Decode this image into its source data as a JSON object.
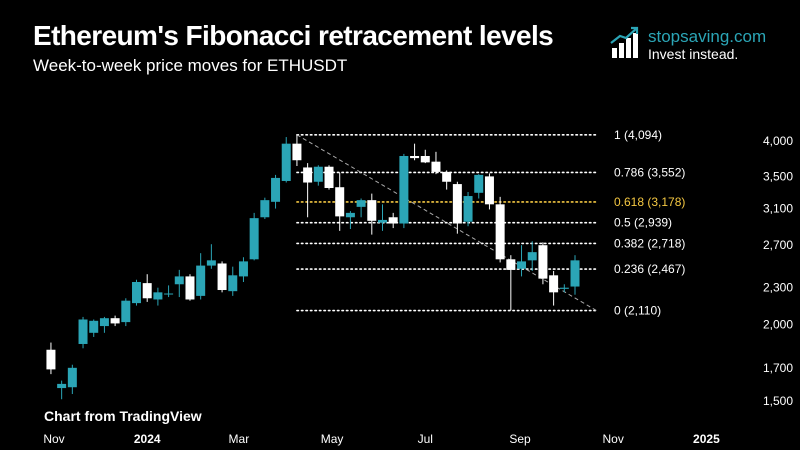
{
  "header": {
    "title": "Ethereum's Fibonacci retracement levels",
    "subtitle": "Week-to-week price moves for ETHUSDT"
  },
  "brand": {
    "name": "stopsaving.com",
    "tagline": "Invest instead.",
    "icon": "bar-chart-growth-icon"
  },
  "credit": "Chart from TradingView",
  "colors": {
    "background": "#000000",
    "up": "#2ba5b6",
    "down": "#ffffff",
    "fib_line": "#ffffff",
    "fib_highlight": "#f5c842",
    "trendline": "#aaaaaa"
  },
  "chart_data": {
    "type": "candlestick",
    "title": "Ethereum's Fibonacci retracement levels",
    "xlabel": "",
    "ylabel": "",
    "y_scale": "log",
    "ylim": [
      1420,
      4500
    ],
    "grid": false,
    "x_ticks": [
      "Nov",
      "2024",
      "Mar",
      "May",
      "Jul",
      "Sep",
      "Nov",
      "2025"
    ],
    "x_tick_dates": [
      "2023-11-01",
      "2024-01-01",
      "2024-03-01",
      "2024-05-01",
      "2024-07-01",
      "2024-09-01",
      "2024-11-01",
      "2025-01-01"
    ],
    "y_ticks": [
      1500,
      1700,
      2000,
      2300,
      2700,
      3100,
      3500,
      4000
    ],
    "y_tick_labels": [
      "1,500",
      "1,700",
      "2,000",
      "2,300",
      "2,700",
      "3,100",
      "3,500",
      "4,000"
    ],
    "candles": [
      {
        "date": "2023-10-30",
        "o": 1820,
        "h": 1870,
        "l": 1660,
        "c": 1690
      },
      {
        "date": "2023-11-06",
        "o": 1575,
        "h": 1620,
        "l": 1510,
        "c": 1600
      },
      {
        "date": "2023-11-13",
        "o": 1580,
        "h": 1720,
        "l": 1540,
        "c": 1700
      },
      {
        "date": "2023-11-20",
        "o": 1860,
        "h": 2060,
        "l": 1830,
        "c": 2040
      },
      {
        "date": "2023-11-27",
        "o": 1940,
        "h": 2040,
        "l": 1910,
        "c": 2030
      },
      {
        "date": "2023-12-04",
        "o": 1990,
        "h": 2060,
        "l": 1940,
        "c": 2050
      },
      {
        "date": "2023-12-11",
        "o": 2050,
        "h": 2070,
        "l": 1990,
        "c": 2010
      },
      {
        "date": "2023-12-18",
        "o": 2020,
        "h": 2210,
        "l": 1990,
        "c": 2190
      },
      {
        "date": "2023-12-25",
        "o": 2170,
        "h": 2370,
        "l": 2150,
        "c": 2350
      },
      {
        "date": "2024-01-01",
        "o": 2340,
        "h": 2420,
        "l": 2180,
        "c": 2210
      },
      {
        "date": "2024-01-08",
        "o": 2200,
        "h": 2300,
        "l": 2150,
        "c": 2260
      },
      {
        "date": "2024-01-15",
        "o": 2250,
        "h": 2320,
        "l": 2220,
        "c": 2250
      },
      {
        "date": "2024-01-22",
        "o": 2330,
        "h": 2460,
        "l": 2220,
        "c": 2400
      },
      {
        "date": "2024-01-29",
        "o": 2400,
        "h": 2420,
        "l": 2190,
        "c": 2200
      },
      {
        "date": "2024-02-05",
        "o": 2230,
        "h": 2620,
        "l": 2200,
        "c": 2500
      },
      {
        "date": "2024-02-12",
        "o": 2500,
        "h": 2710,
        "l": 2470,
        "c": 2550
      },
      {
        "date": "2024-02-19",
        "o": 2520,
        "h": 2540,
        "l": 2260,
        "c": 2280
      },
      {
        "date": "2024-02-26",
        "o": 2270,
        "h": 2490,
        "l": 2230,
        "c": 2410
      },
      {
        "date": "2024-03-04",
        "o": 2400,
        "h": 2580,
        "l": 2350,
        "c": 2540
      },
      {
        "date": "2024-03-11",
        "o": 2560,
        "h": 3050,
        "l": 2550,
        "c": 2990
      },
      {
        "date": "2024-03-18",
        "o": 3000,
        "h": 3230,
        "l": 2980,
        "c": 3200
      },
      {
        "date": "2024-03-25",
        "o": 3180,
        "h": 3520,
        "l": 3100,
        "c": 3480
      },
      {
        "date": "2024-04-01",
        "o": 3440,
        "h": 4060,
        "l": 3420,
        "c": 3960
      },
      {
        "date": "2024-04-08",
        "o": 3960,
        "h": 4094,
        "l": 3640,
        "c": 3720
      },
      {
        "date": "2024-04-15",
        "o": 3620,
        "h": 3680,
        "l": 3000,
        "c": 3420
      },
      {
        "date": "2024-04-22",
        "o": 3430,
        "h": 3650,
        "l": 3380,
        "c": 3630
      },
      {
        "date": "2024-04-29",
        "o": 3630,
        "h": 3650,
        "l": 3330,
        "c": 3350
      },
      {
        "date": "2024-05-06",
        "o": 3360,
        "h": 3550,
        "l": 2850,
        "c": 3010
      },
      {
        "date": "2024-05-13",
        "o": 3000,
        "h": 3070,
        "l": 2870,
        "c": 3050
      },
      {
        "date": "2024-05-20",
        "o": 3120,
        "h": 3220,
        "l": 3000,
        "c": 3200
      },
      {
        "date": "2024-05-27",
        "o": 3200,
        "h": 3280,
        "l": 2810,
        "c": 2960
      },
      {
        "date": "2024-06-03",
        "o": 2940,
        "h": 3150,
        "l": 2850,
        "c": 2970
      },
      {
        "date": "2024-06-10",
        "o": 3000,
        "h": 3050,
        "l": 2880,
        "c": 2930
      },
      {
        "date": "2024-06-17",
        "o": 2930,
        "h": 3810,
        "l": 2880,
        "c": 3780
      },
      {
        "date": "2024-06-24",
        "o": 3780,
        "h": 3960,
        "l": 3720,
        "c": 3750
      },
      {
        "date": "2024-07-01",
        "o": 3780,
        "h": 3870,
        "l": 3680,
        "c": 3690
      },
      {
        "date": "2024-07-08",
        "o": 3700,
        "h": 3840,
        "l": 3530,
        "c": 3560
      },
      {
        "date": "2024-07-15",
        "o": 3560,
        "h": 3580,
        "l": 3330,
        "c": 3430
      },
      {
        "date": "2024-07-22",
        "o": 3400,
        "h": 3430,
        "l": 2820,
        "c": 2930
      },
      {
        "date": "2024-07-29",
        "o": 2950,
        "h": 3300,
        "l": 2900,
        "c": 3250
      },
      {
        "date": "2024-08-05",
        "o": 3290,
        "h": 3530,
        "l": 3220,
        "c": 3520
      },
      {
        "date": "2024-08-12",
        "o": 3500,
        "h": 3540,
        "l": 3090,
        "c": 3150
      },
      {
        "date": "2024-08-19",
        "o": 3150,
        "h": 3240,
        "l": 2530,
        "c": 2560
      },
      {
        "date": "2024-08-26",
        "o": 2560,
        "h": 2600,
        "l": 2111,
        "c": 2460
      },
      {
        "date": "2024-09-02",
        "o": 2470,
        "h": 2700,
        "l": 2400,
        "c": 2540
      },
      {
        "date": "2024-09-09",
        "o": 2550,
        "h": 2740,
        "l": 2450,
        "c": 2630
      },
      {
        "date": "2024-09-16",
        "o": 2700,
        "h": 2730,
        "l": 2330,
        "c": 2380
      },
      {
        "date": "2024-09-23",
        "o": 2410,
        "h": 2450,
        "l": 2150,
        "c": 2260
      },
      {
        "date": "2024-09-30",
        "o": 2290,
        "h": 2330,
        "l": 2260,
        "c": 2300
      },
      {
        "date": "2024-10-07",
        "o": 2310,
        "h": 2600,
        "l": 2240,
        "c": 2550
      }
    ],
    "fib_levels": [
      {
        "ratio": "1",
        "value": 4094,
        "label": "1 (4,094)",
        "highlight": false
      },
      {
        "ratio": "0.786",
        "value": 3552,
        "label": "0.786 (3,552)",
        "highlight": false
      },
      {
        "ratio": "0.618",
        "value": 3178,
        "label": "0.618 (3,178)",
        "highlight": true
      },
      {
        "ratio": "0.5",
        "value": 2939,
        "label": "0.5 (2,939)",
        "highlight": false
      },
      {
        "ratio": "0.382",
        "value": 2718,
        "label": "0.382 (2,718)",
        "highlight": false
      },
      {
        "ratio": "0.236",
        "value": 2467,
        "label": "0.236 (2,467)",
        "highlight": false
      },
      {
        "ratio": "0",
        "value": 2110,
        "label": "0 (2,110)",
        "highlight": false
      }
    ],
    "fib_range": {
      "from": "2024-04-08",
      "to": "2024-10-21"
    },
    "trendline": {
      "from": {
        "date": "2024-04-08",
        "value": 4094
      },
      "to": {
        "date": "2024-10-21",
        "value": 2110
      }
    }
  }
}
